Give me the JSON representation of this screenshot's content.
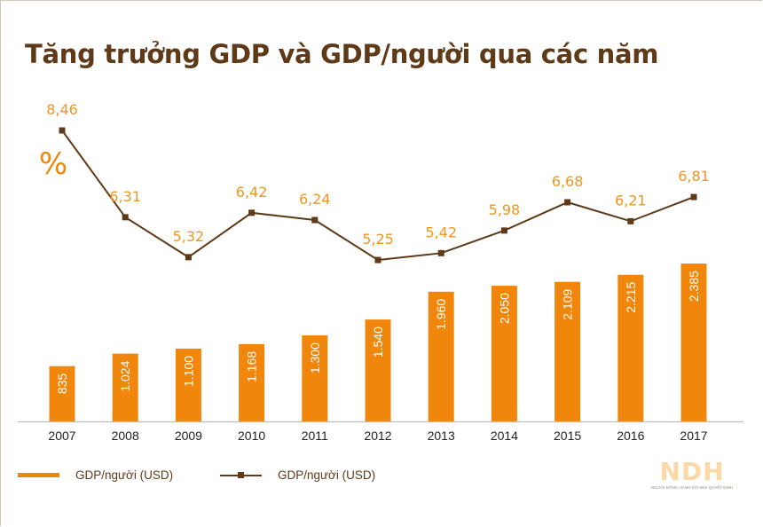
{
  "title": "Tăng trưởng GDP và GDP/người qua các năm",
  "colors": {
    "bar": "#f0870c",
    "line": "#5e3a18",
    "line_label": "#f0961e",
    "bar_label": "#ffffff",
    "axis": "#bdbdbd",
    "title": "#5e3a18"
  },
  "legend": [
    {
      "label": "GDP/người (USD)",
      "type": "bar"
    },
    {
      "label": "GDP/người (USD)",
      "type": "line"
    }
  ],
  "logo": {
    "mark": "NDH",
    "tagline": "NGƯỜI ĐỒNG HÀNH VỚI MỌI QUYẾT ĐỊNH"
  },
  "chart_data": {
    "type": "bar",
    "title": "Tăng trưởng GDP và GDP/người qua các năm",
    "xlabel": "",
    "ylabel": "",
    "categories": [
      "2007",
      "2008",
      "2009",
      "2010",
      "2011",
      "2012",
      "2013",
      "2014",
      "2015",
      "2016",
      "2017"
    ],
    "series": [
      {
        "name": "GDP/người (USD)",
        "type": "bar",
        "values": [
          835,
          1024,
          1100,
          1168,
          1300,
          1540,
          1960,
          2050,
          2109,
          2215,
          2385
        ],
        "labels": [
          "835",
          "1.024",
          "1.100",
          "1.168",
          "1.300",
          "1.540",
          "1.960",
          "2.050",
          "2.109",
          "2.215",
          "2.385"
        ]
      },
      {
        "name": "GDP/người (USD)",
        "type": "line",
        "unit_label": "%",
        "values": [
          8.46,
          6.31,
          5.32,
          6.42,
          6.24,
          5.25,
          5.42,
          5.98,
          6.68,
          6.21,
          6.81
        ],
        "labels": [
          "8,46",
          "6,31",
          "5,32",
          "6,42",
          "6,24",
          "5,25",
          "5,42",
          "5,98",
          "6,68",
          "6,21",
          "6,81"
        ]
      }
    ],
    "legend_position": "bottom-left",
    "grid": false
  }
}
